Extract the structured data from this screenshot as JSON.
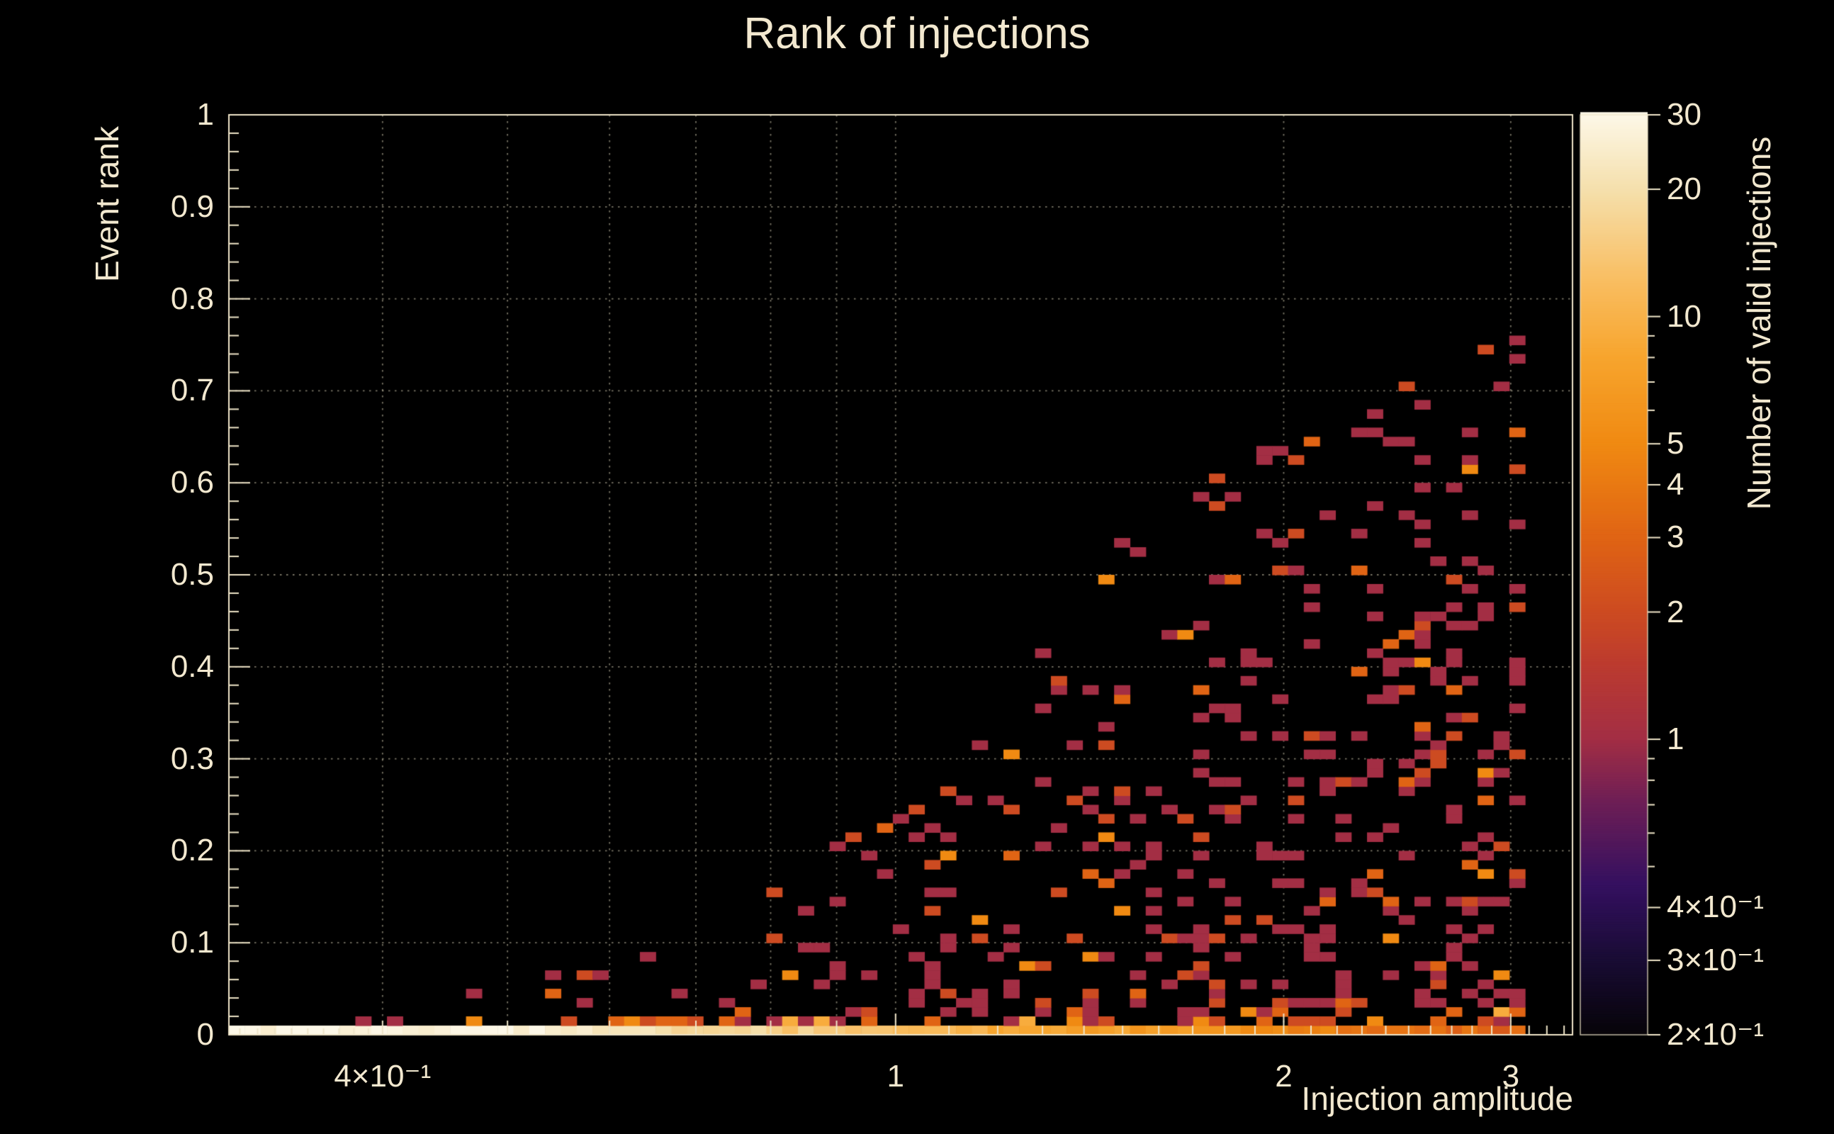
{
  "title": "Rank of injections",
  "colors": {
    "background": "#000000",
    "text": "#f2e8cf",
    "grid": "#eee5c8",
    "axis": "#efe5c8"
  },
  "chart_data": {
    "type": "heatmap",
    "title": "Rank of injections",
    "xlabel": "Injection amplitude",
    "ylabel": "Event rank",
    "colorbar_label": "Number of valid injections",
    "x_scale": "log",
    "x_range": [
      0.304,
      3.35
    ],
    "y_scale": "linear",
    "y_range": [
      0,
      1
    ],
    "z_scale": "log",
    "z_range": [
      0.2,
      30
    ],
    "x_ticks": [
      {
        "value": 0.4,
        "label": "4×10⁻¹"
      },
      {
        "value": 1,
        "label": "1"
      },
      {
        "value": 2,
        "label": "2"
      },
      {
        "value": 3,
        "label": "3"
      }
    ],
    "y_ticks": [
      {
        "value": 0,
        "label": "0"
      },
      {
        "value": 0.1,
        "label": "0.1"
      },
      {
        "value": 0.2,
        "label": "0.2"
      },
      {
        "value": 0.3,
        "label": "0.3"
      },
      {
        "value": 0.4,
        "label": "0.4"
      },
      {
        "value": 0.5,
        "label": "0.5"
      },
      {
        "value": 0.6,
        "label": "0.6"
      },
      {
        "value": 0.7,
        "label": "0.7"
      },
      {
        "value": 0.8,
        "label": "0.8"
      },
      {
        "value": 0.9,
        "label": "0.9"
      },
      {
        "value": 1,
        "label": "1"
      }
    ],
    "colorbar_ticks": [
      {
        "value": 30,
        "label": "30"
      },
      {
        "value": 20,
        "label": "20"
      },
      {
        "value": 10,
        "label": "10"
      },
      {
        "value": 5,
        "label": "5"
      },
      {
        "value": 4,
        "label": "4"
      },
      {
        "value": 3,
        "label": "3"
      },
      {
        "value": 2,
        "label": "2"
      },
      {
        "value": 1,
        "label": "1"
      },
      {
        "value": 0.4,
        "label": "4×10⁻¹"
      },
      {
        "value": 0.3,
        "label": "3×10⁻¹"
      },
      {
        "value": 0.2,
        "label": "2×10⁻¹"
      }
    ],
    "grid_x": [
      0.4,
      0.5,
      0.6,
      0.7,
      0.8,
      0.9,
      1,
      2,
      3
    ],
    "grid_y": [
      0.1,
      0.2,
      0.3,
      0.4,
      0.5,
      0.6,
      0.7,
      0.8,
      0.9,
      1
    ],
    "colormap": [
      [
        0.2,
        "#070409"
      ],
      [
        0.3,
        "#190c34"
      ],
      [
        0.45,
        "#341060"
      ],
      [
        0.7,
        "#6c1e56"
      ],
      [
        1,
        "#a32e44"
      ],
      [
        1.5,
        "#bc3b2f"
      ],
      [
        2,
        "#cd4b21"
      ],
      [
        3,
        "#e06414"
      ],
      [
        5,
        "#f08a12"
      ],
      [
        8,
        "#f7a52e"
      ],
      [
        12,
        "#f9bd60"
      ],
      [
        20,
        "#f5e0ad"
      ],
      [
        30,
        "#fdf8e8"
      ]
    ],
    "bins": {
      "nx": 85,
      "ny": 100
    },
    "pattern": {
      "seed": 20240613,
      "x_max_filled": 3.08,
      "bottom_band": {
        "peak": 30,
        "knee": 0.5,
        "exponent": 1.3,
        "min": 2.2
      },
      "envelope": [
        [
          0.35,
          0.01
        ],
        [
          0.45,
          0.035
        ],
        [
          0.6,
          0.1
        ],
        [
          0.8,
          0.17
        ],
        [
          1.0,
          0.26
        ],
        [
          1.2,
          0.38
        ],
        [
          1.5,
          0.55
        ],
        [
          1.8,
          0.62
        ],
        [
          2.2,
          0.68
        ],
        [
          2.6,
          0.72
        ],
        [
          3.0,
          0.78
        ]
      ],
      "base_density": 0.26
    }
  }
}
